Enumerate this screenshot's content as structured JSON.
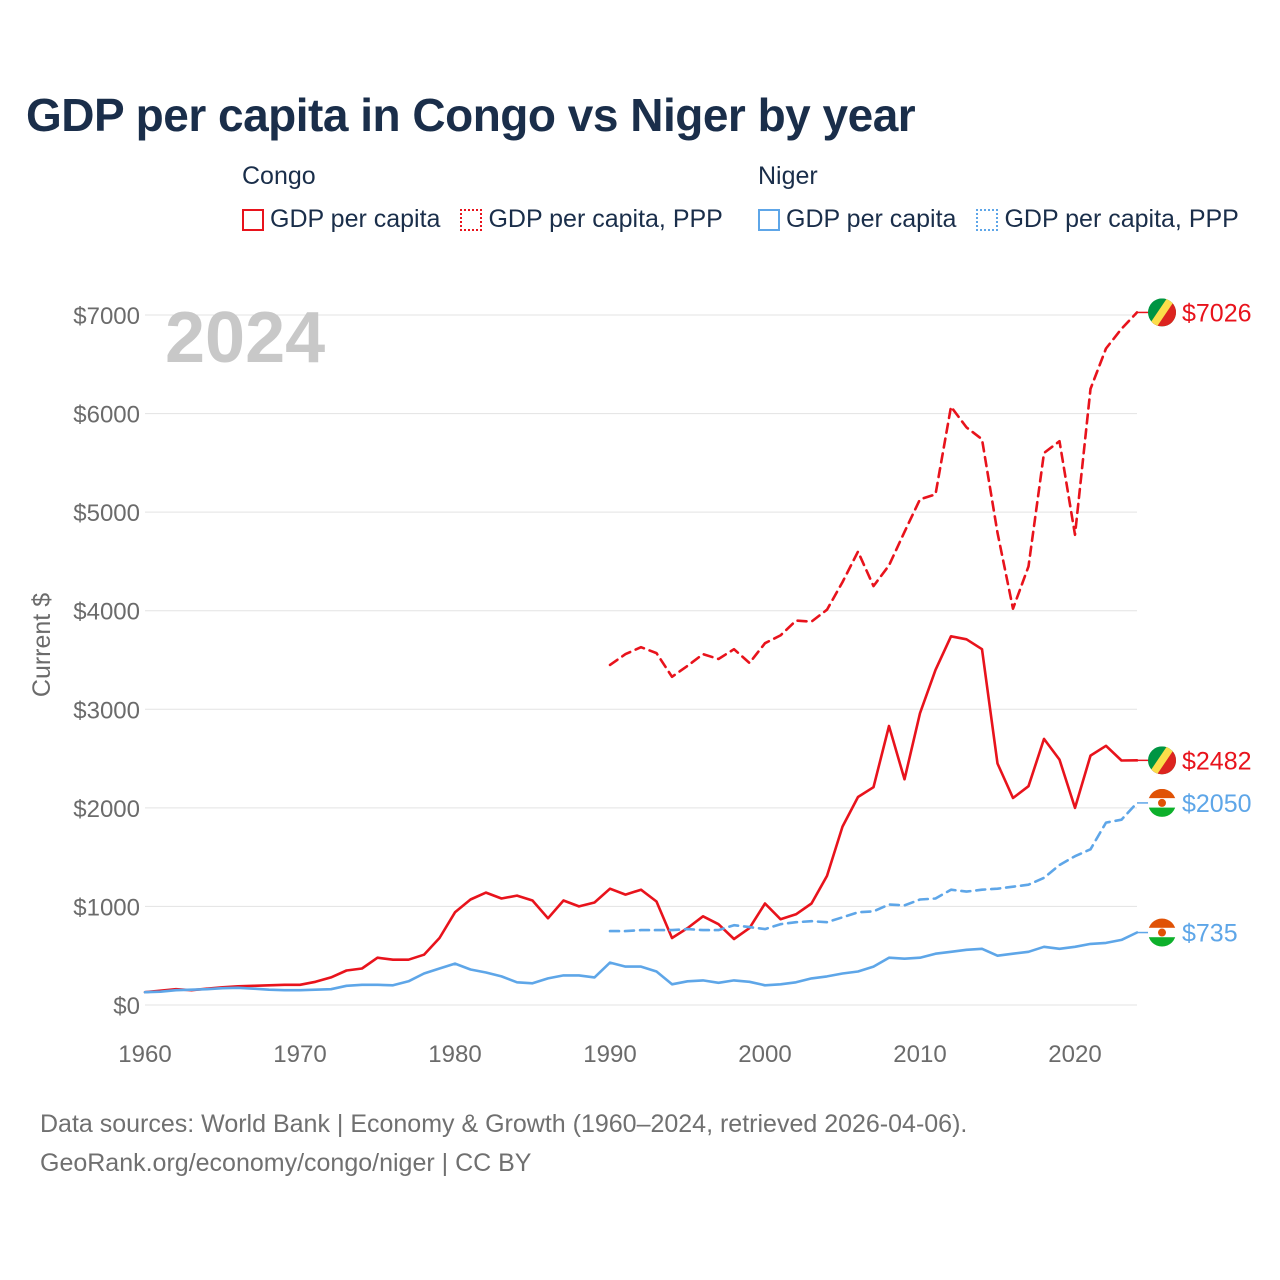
{
  "title": "GDP per capita in Congo vs Niger by year",
  "legend": {
    "groups": [
      {
        "name": "Congo",
        "items": [
          {
            "label": "GDP per capita",
            "color": "#e8131c",
            "style": "solid"
          },
          {
            "label": "GDP per capita, PPP",
            "color": "#e8131c",
            "style": "dotted"
          }
        ]
      },
      {
        "name": "Niger",
        "items": [
          {
            "label": "GDP per capita",
            "color": "#5ea6e8",
            "style": "solid"
          },
          {
            "label": "GDP per capita, PPP",
            "color": "#5ea6e8",
            "style": "dotted"
          }
        ]
      }
    ]
  },
  "footer": {
    "line1": "Data sources: World Bank | Economy & Growth (1960–2024, retrieved 2026-04-06).",
    "line2": "GeoRank.org/economy/congo/niger | CC BY"
  },
  "chart_data": {
    "type": "line",
    "title": "GDP per capita in Congo vs Niger by year",
    "year_label": "2024",
    "ylabel": "Current $",
    "xlabel": "",
    "xlim": [
      1960,
      2024
    ],
    "ylim": [
      0,
      7000
    ],
    "xticks": [
      1960,
      1970,
      1980,
      1990,
      2000,
      2010,
      2020
    ],
    "yticks": [
      0,
      1000,
      2000,
      3000,
      4000,
      5000,
      6000,
      7000
    ],
    "ytick_labels": [
      "$0",
      "$1000",
      "$2000",
      "$3000",
      "$4000",
      "$5000",
      "$6000",
      "$7000"
    ],
    "grid": true,
    "series": [
      {
        "name": "Congo GDP per capita",
        "color": "#e8131c",
        "style": "solid",
        "start_year": 1960,
        "values": [
          130,
          145,
          160,
          150,
          165,
          180,
          190,
          195,
          200,
          205,
          205,
          235,
          280,
          350,
          370,
          480,
          460,
          460,
          510,
          680,
          940,
          1070,
          1140,
          1080,
          1110,
          1060,
          880,
          1060,
          1000,
          1040,
          1180,
          1120,
          1170,
          1050,
          680,
          780,
          900,
          820,
          670,
          780,
          1030,
          870,
          920,
          1030,
          1310,
          1810,
          2110,
          2210,
          2830,
          2290,
          2960,
          3400,
          3740,
          3710,
          3610,
          2450,
          2100,
          2220,
          2700,
          2490,
          2000,
          2530,
          2630,
          2480,
          2482
        ],
        "end_label": "$2482",
        "flag": "congo"
      },
      {
        "name": "Congo GDP per capita, PPP",
        "color": "#e8131c",
        "style": "dashed",
        "start_year": 1990,
        "values": [
          3450,
          3560,
          3630,
          3570,
          3330,
          3440,
          3560,
          3510,
          3610,
          3470,
          3670,
          3750,
          3900,
          3890,
          4010,
          4290,
          4600,
          4250,
          4460,
          4800,
          5130,
          5180,
          6070,
          5860,
          5740,
          4790,
          4020,
          4450,
          5600,
          5720,
          4770,
          6250,
          6660,
          6860,
          7026
        ],
        "end_label": "$7026",
        "flag": "congo"
      },
      {
        "name": "Niger GDP per capita",
        "color": "#5ea6e8",
        "style": "solid",
        "start_year": 1960,
        "values": [
          130,
          135,
          150,
          155,
          160,
          170,
          175,
          165,
          155,
          150,
          150,
          155,
          160,
          195,
          205,
          205,
          200,
          240,
          320,
          370,
          420,
          360,
          330,
          290,
          230,
          220,
          270,
          300,
          300,
          280,
          430,
          390,
          390,
          340,
          210,
          240,
          250,
          225,
          250,
          235,
          200,
          210,
          230,
          270,
          290,
          320,
          340,
          390,
          480,
          470,
          480,
          520,
          540,
          560,
          570,
          500,
          520,
          540,
          590,
          570,
          590,
          620,
          630,
          660,
          735
        ],
        "end_label": "$735",
        "flag": "niger"
      },
      {
        "name": "Niger GDP per capita, PPP",
        "color": "#5ea6e8",
        "style": "dashed",
        "start_year": 1990,
        "values": [
          750,
          750,
          760,
          760,
          760,
          770,
          760,
          760,
          810,
          790,
          770,
          820,
          840,
          850,
          840,
          890,
          940,
          950,
          1020,
          1010,
          1070,
          1080,
          1170,
          1150,
          1170,
          1180,
          1200,
          1220,
          1290,
          1420,
          1510,
          1580,
          1850,
          1880,
          2050
        ],
        "end_label": "$2050",
        "flag": "niger"
      }
    ]
  },
  "colors": {
    "congo": "#e8131c",
    "niger": "#5ea6e8",
    "title": "#1a2e4a",
    "axis_text": "#6b6b6b",
    "grid": "#e3e3e3",
    "year_label": "#c8c8c8"
  }
}
